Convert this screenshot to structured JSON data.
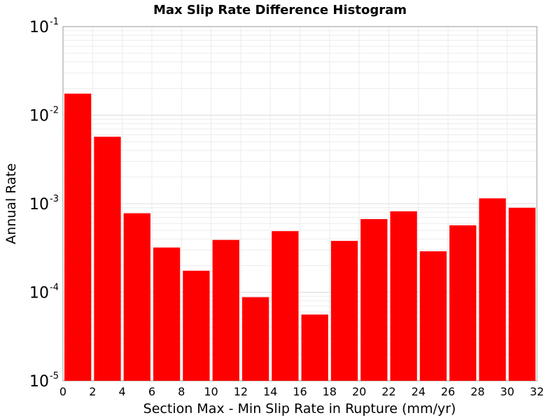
{
  "chart_data": {
    "type": "bar",
    "title": "Max Slip Rate Difference Histogram",
    "xlabel": "Section Max - Min Slip Rate in Rupture (mm/yr)",
    "ylabel": "Annual Rate",
    "bin_width": 2,
    "x": [
      1,
      3,
      5,
      7,
      9,
      11,
      13,
      15,
      17,
      19,
      21,
      23,
      25,
      27,
      29,
      31
    ],
    "values": [
      0.0175,
      0.0057,
      0.00078,
      0.00032,
      0.000175,
      0.00039,
      8.8e-05,
      0.00049,
      5.6e-05,
      0.00038,
      0.00067,
      0.00082,
      0.00029,
      0.00057,
      0.00115,
      0.0009
    ],
    "xlim": [
      0,
      32
    ],
    "ylim": [
      1e-05,
      0.1
    ],
    "yscale": "log",
    "xticks": [
      "0",
      "2",
      "4",
      "6",
      "8",
      "10",
      "12",
      "14",
      "16",
      "18",
      "20",
      "22",
      "24",
      "26",
      "28",
      "30",
      "32"
    ],
    "yticks": [
      {
        "base": "10",
        "exp": "-5"
      },
      {
        "base": "10",
        "exp": "-4"
      },
      {
        "base": "10",
        "exp": "-3"
      },
      {
        "base": "10",
        "exp": "-2"
      },
      {
        "base": "10",
        "exp": "-1"
      }
    ],
    "bar_color": "#ff0000",
    "grid": true,
    "legend": "none"
  }
}
